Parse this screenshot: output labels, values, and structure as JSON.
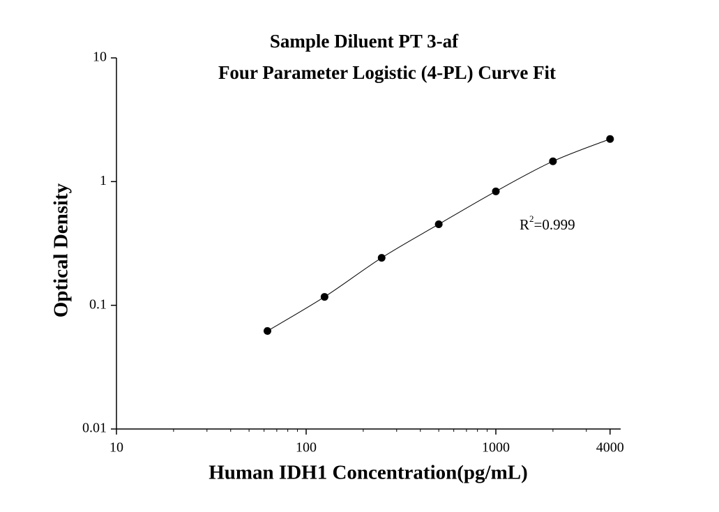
{
  "chart_data": {
    "type": "scatter",
    "title": [
      "Sample Diluent PT 3-af",
      "Four Parameter Logistic (4-PL) Curve Fit"
    ],
    "x_label": "Human IDH1 Concentration(pg/mL)",
    "y_label": "Optical Density",
    "annotation": {
      "base": "R",
      "sup": "2",
      "text": "=0.999"
    },
    "x": [
      62.5,
      125,
      250,
      500,
      1000,
      2000,
      4000
    ],
    "series": [
      {
        "values": [
          0.062,
          0.117,
          0.242,
          0.452,
          0.834,
          1.46,
          2.21
        ],
        "color": "#000000"
      }
    ],
    "fit_curve": true,
    "xlog": true,
    "ylog": true,
    "xlim": [
      10,
      4550
    ],
    "ylim": [
      0.01,
      10
    ],
    "xticks": [
      10,
      100,
      1000,
      4000
    ],
    "yticks": [
      0.01,
      0.1,
      1,
      10
    ],
    "x_minor_ticks": true
  }
}
